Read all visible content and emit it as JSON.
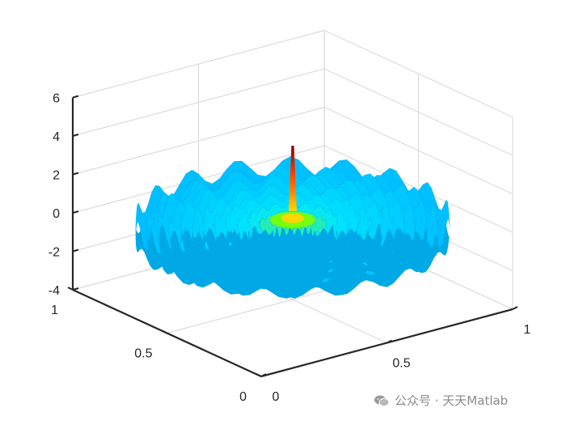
{
  "chart_data": {
    "type": "surface3d",
    "title": "",
    "xlabel": "",
    "ylabel": "",
    "zlabel": "",
    "xlim": [
      0,
      1
    ],
    "ylim": [
      0,
      1
    ],
    "zlim": [
      -4,
      6
    ],
    "grid": true,
    "colormap": "jet",
    "x_ticks": [
      {
        "value": 0,
        "label": "0"
      },
      {
        "value": 0.5,
        "label": "0.5"
      },
      {
        "value": 1,
        "label": "1"
      }
    ],
    "y_ticks": [
      {
        "value": 0,
        "label": "0"
      },
      {
        "value": 0.5,
        "label": "0.5"
      },
      {
        "value": 1,
        "label": "1"
      }
    ],
    "z_ticks": [
      {
        "value": -4,
        "label": "-4"
      },
      {
        "value": -2,
        "label": "-2"
      },
      {
        "value": 0,
        "label": "0"
      },
      {
        "value": 2,
        "label": "2"
      },
      {
        "value": 4,
        "label": "4"
      },
      {
        "value": 6,
        "label": "6"
      }
    ],
    "surface": {
      "shape": "disk",
      "center": [
        0.5,
        0.5
      ],
      "radius": 0.5,
      "ring_count": 14,
      "peak_z": 4,
      "base_z": 0,
      "ripple_amplitude_z": 0.5,
      "colors": {
        "peak": "#8b0000",
        "high": "#ffd700",
        "mid": "#7fff00",
        "low": "#00e5ff",
        "rim": "#00bfff"
      }
    }
  },
  "watermark": {
    "icon": "wechat-icon",
    "text": "公众号 · 天天Matlab"
  }
}
